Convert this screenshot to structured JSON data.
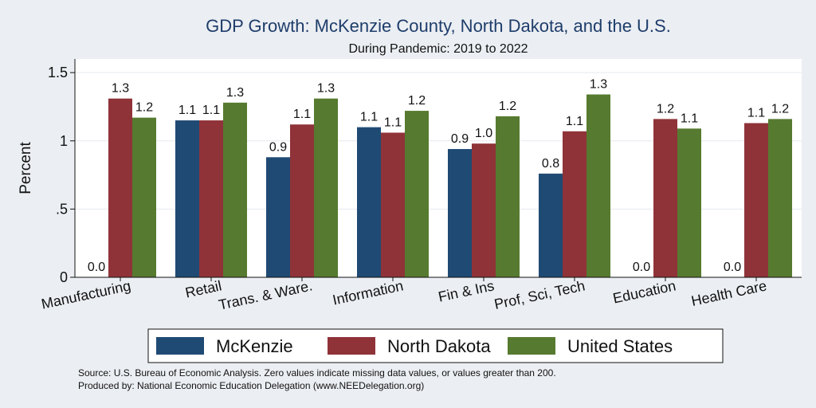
{
  "chart_data": {
    "type": "bar",
    "title": "GDP Growth: McKenzie County, North Dakota, and the U.S.",
    "subtitle": "During Pandemic: 2019 to 2022",
    "ylabel": "Percent",
    "xlabel": "",
    "ylim": [
      0,
      1.6
    ],
    "yticks": [
      0,
      0.5,
      1,
      1.5
    ],
    "ytick_labels": [
      "0",
      ".5",
      "1",
      "1.5"
    ],
    "grid": true,
    "legend_position": "bottom",
    "categories": [
      "Manufacturing",
      "Retail",
      "Trans. & Ware.",
      "Information",
      "Fin & Ins",
      "Prof, Sci, Tech",
      "Education",
      "Health Care"
    ],
    "series": [
      {
        "name": "McKenzie",
        "color": "#1f4a74",
        "values": [
          0.0,
          1.15,
          0.88,
          1.1,
          0.94,
          0.76,
          0.0,
          0.0
        ],
        "labels": [
          "0.0",
          "1.1",
          "0.9",
          "1.1",
          "0.9",
          "0.8",
          "0.0",
          "0.0"
        ]
      },
      {
        "name": "North Dakota",
        "color": "#8f3339",
        "values": [
          1.31,
          1.15,
          1.12,
          1.06,
          0.98,
          1.07,
          1.16,
          1.13
        ],
        "labels": [
          "1.3",
          "1.1",
          "1.1",
          "1.1",
          "1.0",
          "1.1",
          "1.2",
          "1.1"
        ]
      },
      {
        "name": "United States",
        "color": "#567a2f",
        "values": [
          1.17,
          1.28,
          1.31,
          1.22,
          1.18,
          1.34,
          1.09,
          1.16
        ],
        "labels": [
          "1.2",
          "1.3",
          "1.3",
          "1.2",
          "1.2",
          "1.3",
          "1.1",
          "1.2"
        ]
      }
    ],
    "annotations": [
      "Source: U.S. Bureau of Economic Analysis. Zero values indicate missing data values, or values greater than 200.",
      "Produced by: National Economic Education Delegation (www.NEEDelegation.org)"
    ]
  },
  "colors": {
    "background": "#ebeef2",
    "plot_background": "#ffffff",
    "grid": "#e6e9ee",
    "axis": "#111111",
    "title": "#1e3d6b"
  }
}
